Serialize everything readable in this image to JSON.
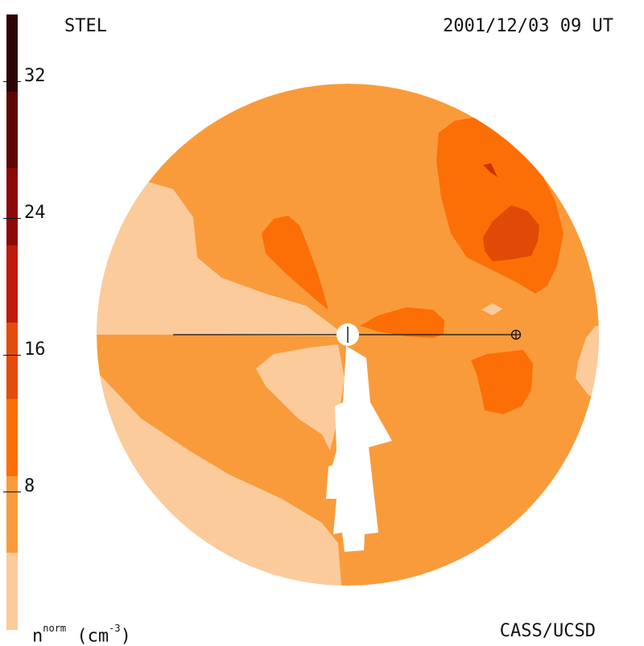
{
  "header": {
    "instrument": "STEL",
    "datetime": "2001/12/03 09 UT"
  },
  "footer": {
    "credit": "CASS/UCSD",
    "unit_base": "n",
    "unit_sup": "norm",
    "unit_paren": "(cm",
    "unit_exp": "-3",
    "unit_close": ")"
  },
  "colorbar": {
    "ticks": [
      "8",
      "16",
      "24",
      "32"
    ],
    "levels": [
      {
        "color": "#fccb9c"
      },
      {
        "color": "#f99b3b"
      },
      {
        "color": "#fc6f06"
      },
      {
        "color": "#e54c0b"
      },
      {
        "color": "#c21a0c"
      },
      {
        "color": "#8d0807"
      },
      {
        "color": "#5e0606"
      },
      {
        "color": "#2c0505"
      }
    ]
  },
  "colors": {
    "background_level": "#f99b3b",
    "low_level": "#fccb9c",
    "mid_level": "#fc6f06",
    "high_level": "#e04a06",
    "peak_level": "#c63608"
  },
  "map": {
    "earth_symbol": "earth-icon",
    "sun_symbol": "sun-icon"
  }
}
